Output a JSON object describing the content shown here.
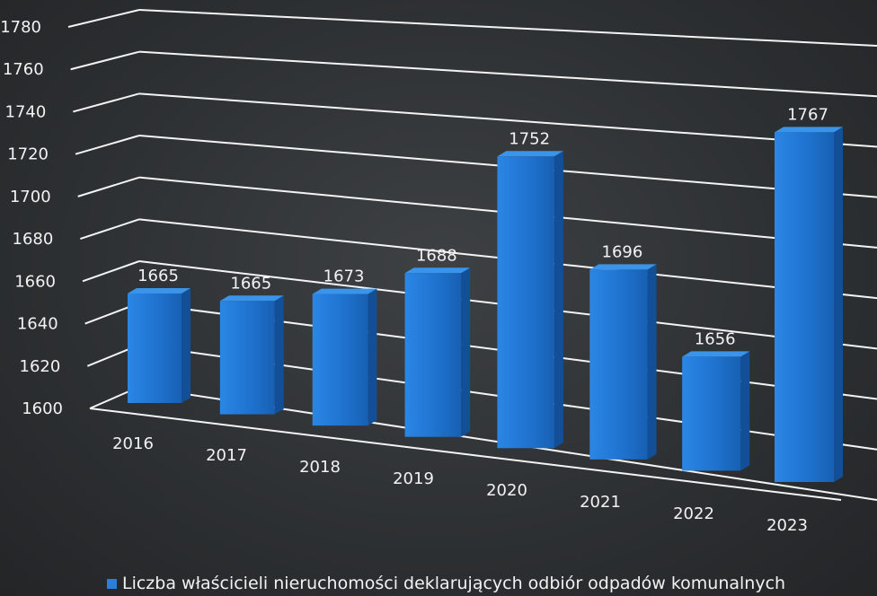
{
  "chart_data": {
    "type": "bar",
    "categories": [
      "2016",
      "2017",
      "2018",
      "2019",
      "2020",
      "2021",
      "2022",
      "2023"
    ],
    "series": [
      {
        "name": "Liczba właścicieli nieruchomości deklarujących odbiór odpadów komunalnych",
        "values": [
          1665,
          1665,
          1673,
          1688,
          1752,
          1696,
          1656,
          1767
        ]
      }
    ],
    "data_labels": [
      "1665",
      "1665",
      "1673",
      "1688",
      "1752",
      "1696",
      "1656",
      "1767"
    ],
    "yticks": [
      "1600",
      "1620",
      "1640",
      "1660",
      "1680",
      "1700",
      "1720",
      "1740",
      "1760",
      "1780"
    ],
    "ylim": [
      1600,
      1780
    ],
    "grid": true,
    "legend_position": "bottom",
    "style": "3d-column",
    "colors": {
      "bar": "#1f73cf",
      "background": "#2f3234",
      "text": "#f2f2f2",
      "grid": "#f4f4f4"
    }
  },
  "legend": {
    "label": "Liczba właścicieli nieruchomości deklarujących odbiór odpadów komunalnych"
  }
}
